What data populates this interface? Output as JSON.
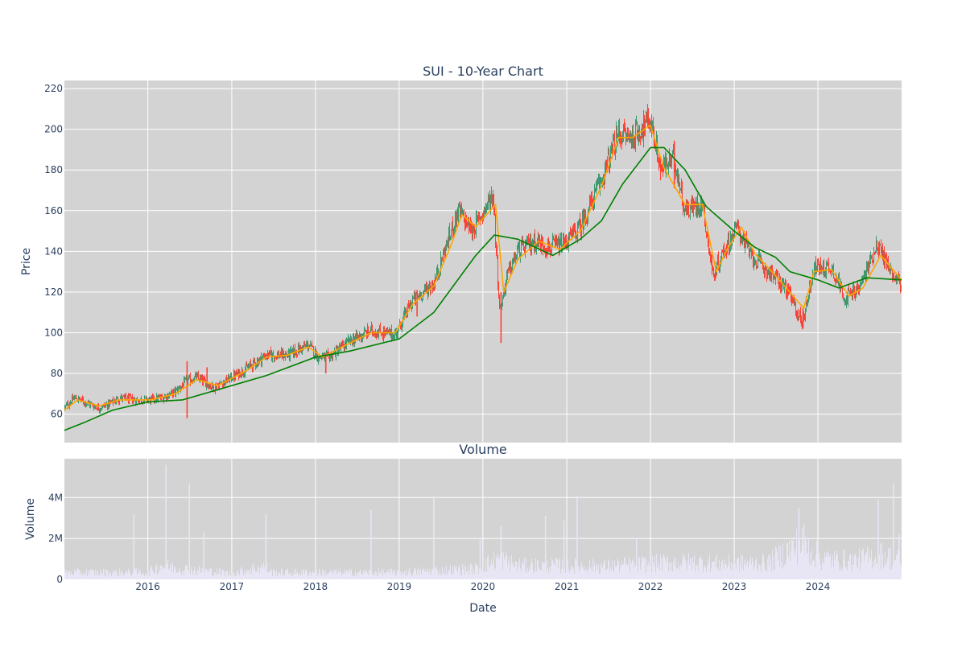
{
  "chart_data": [
    {
      "type": "candlestick",
      "title": "SUI - 10-Year Chart",
      "xlabel": "",
      "ylabel": "Price",
      "x_range": [
        "2015-01-02",
        "2024-12-31"
      ],
      "ylim": [
        46,
        224
      ],
      "y_ticks": [
        60,
        80,
        100,
        120,
        140,
        160,
        180,
        200,
        220
      ],
      "grid": true,
      "legend": "none",
      "colors": {
        "background": "#d3d3d3",
        "grid": "#ffffff",
        "up": "#3d9970",
        "down": "#ff4136",
        "short_ma": "#ffa500",
        "long_ma": "#008000"
      },
      "price_path": [
        [
          "2015-01-02",
          63
        ],
        [
          "2015-02-15",
          68
        ],
        [
          "2015-04-01",
          66
        ],
        [
          "2015-06-01",
          63
        ],
        [
          "2015-07-15",
          65
        ],
        [
          "2015-09-01",
          68
        ],
        [
          "2015-11-01",
          67
        ],
        [
          "2016-01-15",
          67
        ],
        [
          "2016-03-01",
          68
        ],
        [
          "2016-05-01",
          71
        ],
        [
          "2016-06-15",
          76
        ],
        [
          "2016-08-01",
          78
        ],
        [
          "2016-10-15",
          73
        ],
        [
          "2016-12-01",
          76
        ],
        [
          "2017-03-01",
          82
        ],
        [
          "2017-06-01",
          89
        ],
        [
          "2017-09-01",
          89
        ],
        [
          "2017-12-01",
          94
        ],
        [
          "2018-01-15",
          88
        ],
        [
          "2018-03-01",
          88
        ],
        [
          "2018-06-01",
          96
        ],
        [
          "2018-09-01",
          101
        ],
        [
          "2018-12-15",
          99
        ],
        [
          "2019-03-01",
          116
        ],
        [
          "2019-06-01",
          124
        ],
        [
          "2019-08-01",
          145
        ],
        [
          "2019-09-15",
          160
        ],
        [
          "2019-11-15",
          150
        ],
        [
          "2020-02-15",
          168
        ],
        [
          "2020-03-15",
          110
        ],
        [
          "2020-04-15",
          128
        ],
        [
          "2020-06-01",
          140
        ],
        [
          "2020-08-15",
          145
        ],
        [
          "2020-10-15",
          142
        ],
        [
          "2020-12-15",
          143
        ],
        [
          "2021-03-01",
          152
        ],
        [
          "2021-06-01",
          175
        ],
        [
          "2021-08-15",
          198
        ],
        [
          "2021-10-15",
          196
        ],
        [
          "2021-12-31",
          205
        ],
        [
          "2022-02-15",
          180
        ],
        [
          "2022-04-15",
          186
        ],
        [
          "2022-06-01",
          160
        ],
        [
          "2022-08-15",
          164
        ],
        [
          "2022-10-01",
          128
        ],
        [
          "2022-11-15",
          140
        ],
        [
          "2023-01-15",
          152
        ],
        [
          "2023-03-15",
          138
        ],
        [
          "2023-06-01",
          130
        ],
        [
          "2023-08-15",
          122
        ],
        [
          "2023-10-25",
          105
        ],
        [
          "2023-12-15",
          132
        ],
        [
          "2024-03-01",
          132
        ],
        [
          "2024-05-01",
          117
        ],
        [
          "2024-07-01",
          122
        ],
        [
          "2024-09-15",
          144
        ],
        [
          "2024-11-15",
          130
        ],
        [
          "2024-12-31",
          124
        ]
      ],
      "short_ma": [
        [
          "2015-01-02",
          62
        ],
        [
          "2015-03-01",
          67
        ],
        [
          "2015-06-01",
          64
        ],
        [
          "2015-09-01",
          67
        ],
        [
          "2016-01-15",
          67
        ],
        [
          "2016-05-01",
          70
        ],
        [
          "2016-08-01",
          77
        ],
        [
          "2016-11-01",
          74
        ],
        [
          "2017-03-01",
          81
        ],
        [
          "2017-06-01",
          88
        ],
        [
          "2017-09-01",
          89
        ],
        [
          "2017-12-01",
          93
        ],
        [
          "2018-02-01",
          88
        ],
        [
          "2018-06-01",
          95
        ],
        [
          "2018-09-01",
          100
        ],
        [
          "2018-12-15",
          100
        ],
        [
          "2019-03-01",
          114
        ],
        [
          "2019-06-01",
          123
        ],
        [
          "2019-08-15",
          143
        ],
        [
          "2019-10-01",
          158
        ],
        [
          "2019-12-01",
          152
        ],
        [
          "2020-02-25",
          163
        ],
        [
          "2020-04-01",
          120
        ],
        [
          "2020-06-01",
          136
        ],
        [
          "2020-09-01",
          145
        ],
        [
          "2020-12-01",
          141
        ],
        [
          "2021-03-01",
          150
        ],
        [
          "2021-06-01",
          172
        ],
        [
          "2021-08-15",
          196
        ],
        [
          "2021-10-15",
          196
        ],
        [
          "2021-12-31",
          202
        ],
        [
          "2022-03-01",
          181
        ],
        [
          "2022-06-01",
          163
        ],
        [
          "2022-08-15",
          163
        ],
        [
          "2022-10-15",
          130
        ],
        [
          "2022-12-01",
          141
        ],
        [
          "2023-02-01",
          152
        ],
        [
          "2023-04-01",
          139
        ],
        [
          "2023-07-01",
          128
        ],
        [
          "2023-10-31",
          112
        ],
        [
          "2023-12-15",
          130
        ],
        [
          "2024-03-01",
          131
        ],
        [
          "2024-05-15",
          118
        ],
        [
          "2024-07-15",
          122
        ],
        [
          "2024-10-01",
          138
        ],
        [
          "2024-12-31",
          126
        ]
      ],
      "long_ma": [
        [
          "2015-01-02",
          52
        ],
        [
          "2015-04-01",
          56
        ],
        [
          "2015-08-01",
          62
        ],
        [
          "2016-01-01",
          66
        ],
        [
          "2016-06-01",
          67
        ],
        [
          "2017-01-01",
          74
        ],
        [
          "2017-06-01",
          79
        ],
        [
          "2018-01-01",
          88
        ],
        [
          "2018-06-01",
          91
        ],
        [
          "2019-01-01",
          97
        ],
        [
          "2019-06-01",
          110
        ],
        [
          "2019-12-01",
          138
        ],
        [
          "2020-02-20",
          148
        ],
        [
          "2020-06-01",
          146
        ],
        [
          "2020-11-01",
          138
        ],
        [
          "2021-03-01",
          146
        ],
        [
          "2021-06-01",
          155
        ],
        [
          "2021-09-01",
          173
        ],
        [
          "2022-01-01",
          191
        ],
        [
          "2022-03-01",
          191
        ],
        [
          "2022-06-01",
          180
        ],
        [
          "2022-09-01",
          162
        ],
        [
          "2023-01-01",
          150
        ],
        [
          "2023-04-01",
          142
        ],
        [
          "2023-07-01",
          137
        ],
        [
          "2023-09-01",
          130
        ],
        [
          "2024-01-01",
          126
        ],
        [
          "2024-04-01",
          122
        ],
        [
          "2024-08-01",
          127
        ],
        [
          "2024-12-31",
          126
        ]
      ],
      "spikes": [
        [
          "2016-06-20",
          58,
          86
        ],
        [
          "2016-09-15",
          73,
          83
        ],
        [
          "2018-02-15",
          80,
          90
        ],
        [
          "2019-03-20",
          108,
          121
        ],
        [
          "2020-03-20",
          95,
          120
        ],
        [
          "2022-04-15",
          171,
          194
        ],
        [
          "2023-10-28",
          102,
          112
        ]
      ]
    },
    {
      "type": "bar",
      "title": "Volume",
      "xlabel": "Date",
      "ylabel": "Volume",
      "x_range": [
        "2015-01-02",
        "2024-12-31"
      ],
      "ylim": [
        0,
        5900000
      ],
      "y_ticks": [
        {
          "value": 0,
          "label": "0"
        },
        {
          "value": 2000000,
          "label": "2M"
        },
        {
          "value": 4000000,
          "label": "4M"
        }
      ],
      "x_ticks": [
        {
          "date": "2016-01-01",
          "label": "2016"
        },
        {
          "date": "2017-01-01",
          "label": "2017"
        },
        {
          "date": "2018-01-01",
          "label": "2018"
        },
        {
          "date": "2019-01-01",
          "label": "2019"
        },
        {
          "date": "2020-01-01",
          "label": "2020"
        },
        {
          "date": "2021-01-01",
          "label": "2021"
        },
        {
          "date": "2022-01-01",
          "label": "2022"
        },
        {
          "date": "2023-01-01",
          "label": "2023"
        },
        {
          "date": "2024-01-01",
          "label": "2024"
        }
      ],
      "grid": true,
      "colors": {
        "background": "#d3d3d3",
        "grid": "#ffffff",
        "bars": "#e8e6f5"
      },
      "volume_profile": [
        [
          "2015-01-02",
          400000
        ],
        [
          "2015-12-31",
          400000
        ],
        [
          "2016-03-01",
          800000
        ],
        [
          "2016-06-01",
          600000
        ],
        [
          "2016-12-31",
          350000
        ],
        [
          "2017-05-15",
          750000
        ],
        [
          "2017-07-01",
          400000
        ],
        [
          "2018-12-31",
          400000
        ],
        [
          "2019-06-01",
          500000
        ],
        [
          "2019-12-01",
          600000
        ],
        [
          "2020-03-15",
          1200000
        ],
        [
          "2020-06-01",
          800000
        ],
        [
          "2020-12-01",
          800000
        ],
        [
          "2021-06-01",
          750000
        ],
        [
          "2021-12-31",
          900000
        ],
        [
          "2022-06-01",
          1000000
        ],
        [
          "2022-12-31",
          900000
        ],
        [
          "2023-06-01",
          950000
        ],
        [
          "2023-10-20",
          2100000
        ],
        [
          "2024-01-15",
          1200000
        ],
        [
          "2024-06-01",
          1050000
        ],
        [
          "2024-10-01",
          1400000
        ],
        [
          "2024-12-31",
          1100000
        ]
      ],
      "volume_spikes": [
        [
          "2015-11-01",
          3200000
        ],
        [
          "2016-03-20",
          5600000
        ],
        [
          "2016-06-30",
          4700000
        ],
        [
          "2016-09-01",
          2300000
        ],
        [
          "2017-05-30",
          3200000
        ],
        [
          "2018-08-31",
          3400000
        ],
        [
          "2019-06-01",
          4100000
        ],
        [
          "2019-12-20",
          2000000
        ],
        [
          "2020-03-20",
          2600000
        ],
        [
          "2020-09-30",
          3100000
        ],
        [
          "2020-12-20",
          2900000
        ],
        [
          "2021-02-15",
          4100000
        ],
        [
          "2021-11-01",
          2000000
        ],
        [
          "2023-10-10",
          3500000
        ],
        [
          "2023-11-01",
          2700000
        ],
        [
          "2024-09-20",
          3900000
        ],
        [
          "2024-11-25",
          4700000
        ],
        [
          "2024-12-20",
          2200000
        ]
      ]
    }
  ]
}
